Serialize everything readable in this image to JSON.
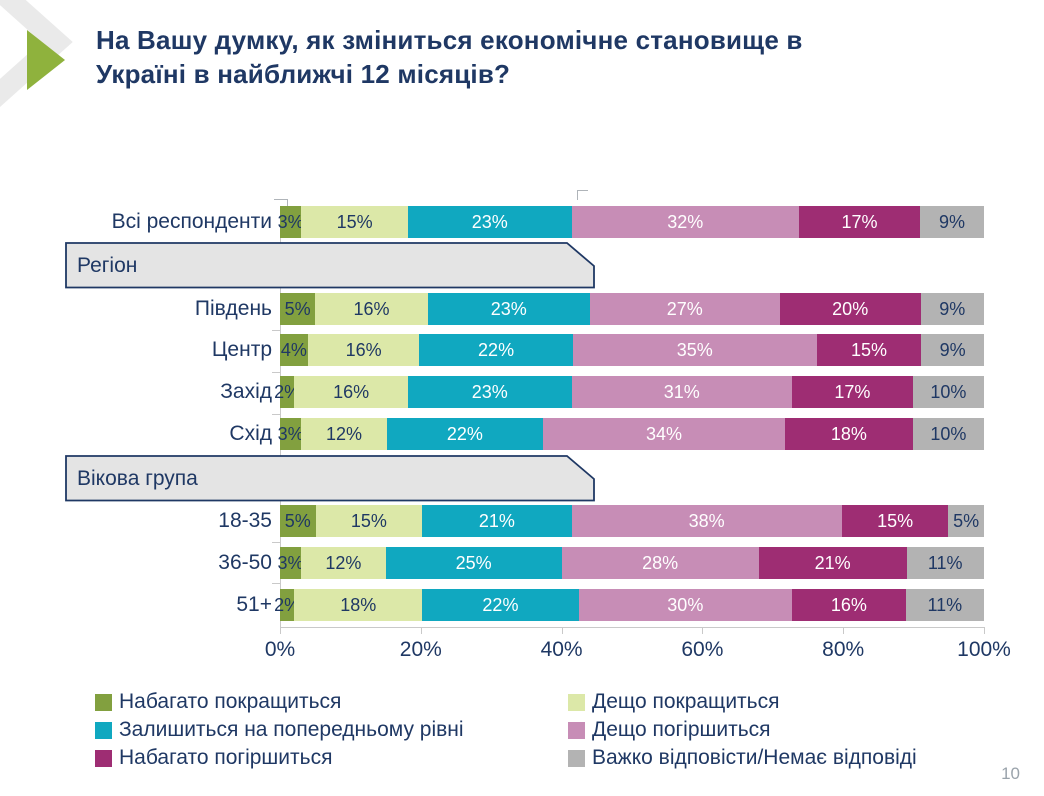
{
  "title_lines": [
    "На Вашу думку, як зміниться економічне становище в",
    "Україні в найближчі 12 місяців?"
  ],
  "page_number": "10",
  "colors": {
    "title_text": "#1F3864",
    "category_text": "#1F3864",
    "accent_arrow_green": "#8FB23D",
    "accent_chevron_gray": "#EAEAEA",
    "header_box_fill": "#E4E4E4",
    "header_box_border": "#1F3864",
    "axis": "#C9C9C9",
    "bar_label_dark": "#1F3864",
    "bar_label_light": "#FFFFFF",
    "page_number_text": "#9AA3AB"
  },
  "chart_data": {
    "type": "bar",
    "stacked": true,
    "orientation": "horizontal",
    "x_axis": {
      "ticks": [
        "0%",
        "20%",
        "40%",
        "60%",
        "80%",
        "100%"
      ],
      "min": 0,
      "max": 100
    },
    "series": [
      {
        "name": "Набагато покращиться",
        "color": "#82A03F",
        "label_color": "dark"
      },
      {
        "name": "Дещо покращиться",
        "color": "#DCE8A8",
        "label_color": "dark"
      },
      {
        "name": "Залишиться на попередньому рівні",
        "color": "#10A8C0",
        "label_color": "light"
      },
      {
        "name": "Дещо погіршиться",
        "color": "#C78DB6",
        "label_color": "light"
      },
      {
        "name": "Набагато погіршиться",
        "color": "#9E2D73",
        "label_color": "light"
      },
      {
        "name": "Важко відповісти/Немає відповіді",
        "color": "#B3B3B3",
        "label_color": "dark"
      }
    ],
    "rows": [
      {
        "type": "bar",
        "label": "Всі респонденти",
        "values": [
          3,
          15,
          23,
          32,
          17,
          9
        ]
      },
      {
        "type": "header",
        "label": "Регіон"
      },
      {
        "type": "bar",
        "label": "Південь",
        "values": [
          5,
          16,
          23,
          27,
          20,
          9
        ]
      },
      {
        "type": "bar",
        "label": "Центр",
        "values": [
          4,
          16,
          22,
          35,
          15,
          9
        ]
      },
      {
        "type": "bar",
        "label": "Захід",
        "values": [
          2,
          16,
          23,
          31,
          17,
          10
        ]
      },
      {
        "type": "bar",
        "label": "Схід",
        "values": [
          3,
          12,
          22,
          34,
          18,
          10
        ]
      },
      {
        "type": "header",
        "label": "Вікова група"
      },
      {
        "type": "bar",
        "label": "18-35",
        "values": [
          5,
          15,
          21,
          38,
          15,
          5
        ]
      },
      {
        "type": "bar",
        "label": "36-50",
        "values": [
          3,
          12,
          25,
          28,
          21,
          11
        ]
      },
      {
        "type": "bar",
        "label": "51+",
        "values": [
          2,
          18,
          22,
          30,
          16,
          11
        ]
      }
    ]
  },
  "legend": {
    "columns": [
      [
        {
          "label": "Набагато покращиться",
          "color": "#82A03F"
        },
        {
          "label": "Залишиться на попередньому рівні",
          "color": "#10A8C0"
        },
        {
          "label": "Набагато погіршиться",
          "color": "#9E2D73"
        }
      ],
      [
        {
          "label": "Дещо покращиться",
          "color": "#DCE8A8"
        },
        {
          "label": "Дещо погіршиться",
          "color": "#C78DB6"
        },
        {
          "label": "Важко відповісти/Немає відповіді",
          "color": "#B3B3B3"
        }
      ]
    ]
  }
}
